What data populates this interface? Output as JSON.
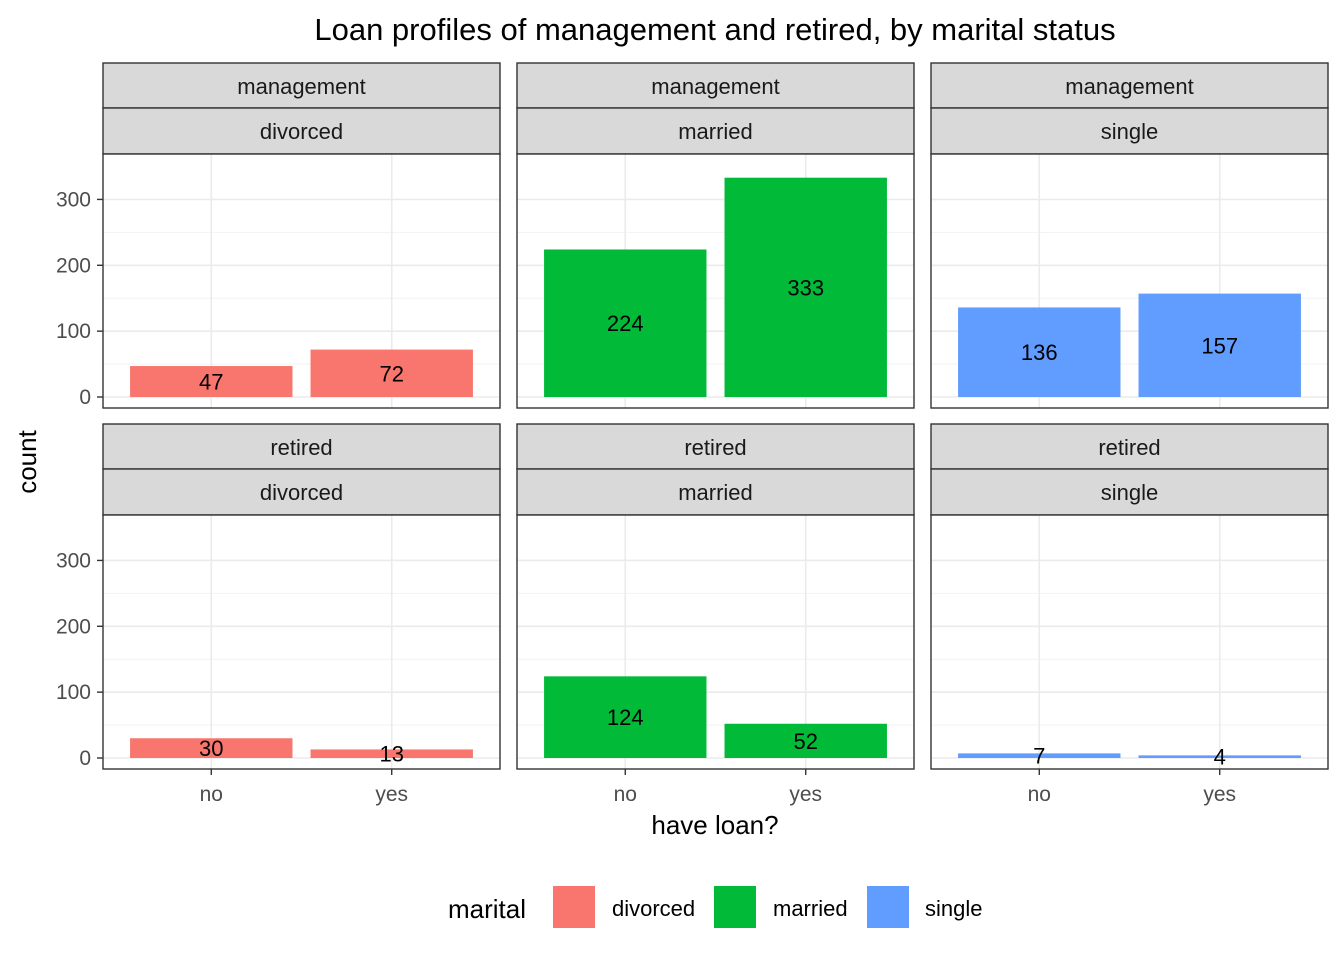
{
  "chart_data": {
    "type": "bar",
    "title": "Loan profiles of management and retired, by marital status",
    "xlabel": "have loan?",
    "ylabel": "count",
    "categories": [
      "no",
      "yes"
    ],
    "ylim": [
      0,
      350
    ],
    "yticks": [
      0,
      100,
      200,
      300
    ],
    "grid": true,
    "legend": {
      "title": "marital",
      "position": "bottom",
      "entries": [
        {
          "name": "divorced",
          "color": "#F8766D"
        },
        {
          "name": "married",
          "color": "#00BA38"
        },
        {
          "name": "single",
          "color": "#619CFF"
        }
      ]
    },
    "facets": [
      {
        "job": "management",
        "marital": "divorced",
        "values": [
          47,
          72
        ],
        "color": "#F8766D"
      },
      {
        "job": "management",
        "marital": "married",
        "values": [
          224,
          333
        ],
        "color": "#00BA38"
      },
      {
        "job": "management",
        "marital": "single",
        "values": [
          136,
          157
        ],
        "color": "#619CFF"
      },
      {
        "job": "retired",
        "marital": "divorced",
        "values": [
          30,
          13
        ],
        "color": "#F8766D"
      },
      {
        "job": "retired",
        "marital": "married",
        "values": [
          124,
          52
        ],
        "color": "#00BA38"
      },
      {
        "job": "retired",
        "marital": "single",
        "values": [
          7,
          4
        ],
        "color": "#619CFF"
      }
    ]
  }
}
